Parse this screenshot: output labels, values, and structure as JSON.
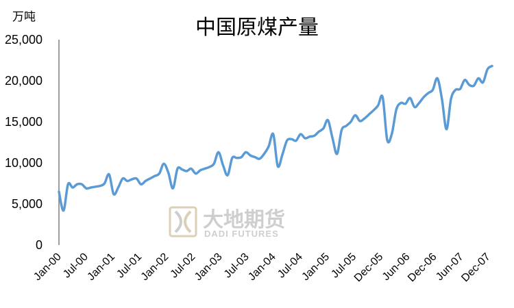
{
  "chart_data": {
    "type": "line",
    "title": "中国原煤产量",
    "unit_label": "万吨",
    "ylim": [
      0,
      25000
    ],
    "y_ticks": [
      0,
      5000,
      10000,
      15000,
      20000,
      25000
    ],
    "y_tick_labels": [
      "0",
      "5,000",
      "10,000",
      "15,000",
      "20,000",
      "25,000"
    ],
    "x_tick_labels": [
      "Jan-00",
      "Jul-00",
      "Jan-01",
      "Jul-01",
      "Jan-02",
      "Jul-02",
      "Jan-03",
      "Jul-03",
      "Jan-04",
      "Jul-04",
      "Jan-05",
      "Jul-05",
      "Dec-05",
      "Jun-06",
      "Dec-06",
      "Jun-07",
      "Dec-07"
    ],
    "grid": false,
    "line_color": "#5b9bd5",
    "series": [
      {
        "values": [
          6500,
          4200,
          7400,
          7000,
          7400,
          7400,
          6900,
          7000,
          7100,
          7200,
          7500,
          8600,
          6200,
          7000,
          8100,
          7800,
          8000,
          8100,
          7400,
          7800,
          8100,
          8400,
          8700,
          9900,
          8800,
          6900,
          9300,
          9200,
          9000,
          9300,
          8700,
          9100,
          9300,
          9500,
          9900,
          11300,
          9700,
          8500,
          10600,
          10600,
          10700,
          11300,
          10900,
          10700,
          10500,
          11100,
          12000,
          13500,
          9600,
          11000,
          12700,
          12900,
          12700,
          13500,
          13000,
          13200,
          13300,
          13800,
          14200,
          15200,
          13000,
          11100,
          14000,
          14500,
          15000,
          15800,
          15100,
          15400,
          15900,
          16400,
          17000,
          18000,
          12800,
          13500,
          16500,
          17300,
          17200,
          17900,
          16800,
          17300,
          18000,
          18500,
          18900,
          20300,
          17800,
          14100,
          17800,
          18900,
          19000,
          20100,
          19500,
          19400,
          20300,
          19800,
          21400,
          21800
        ]
      }
    ]
  },
  "watermark": {
    "name_cn": "大地期货",
    "name_en": "DADI FUTURES"
  }
}
